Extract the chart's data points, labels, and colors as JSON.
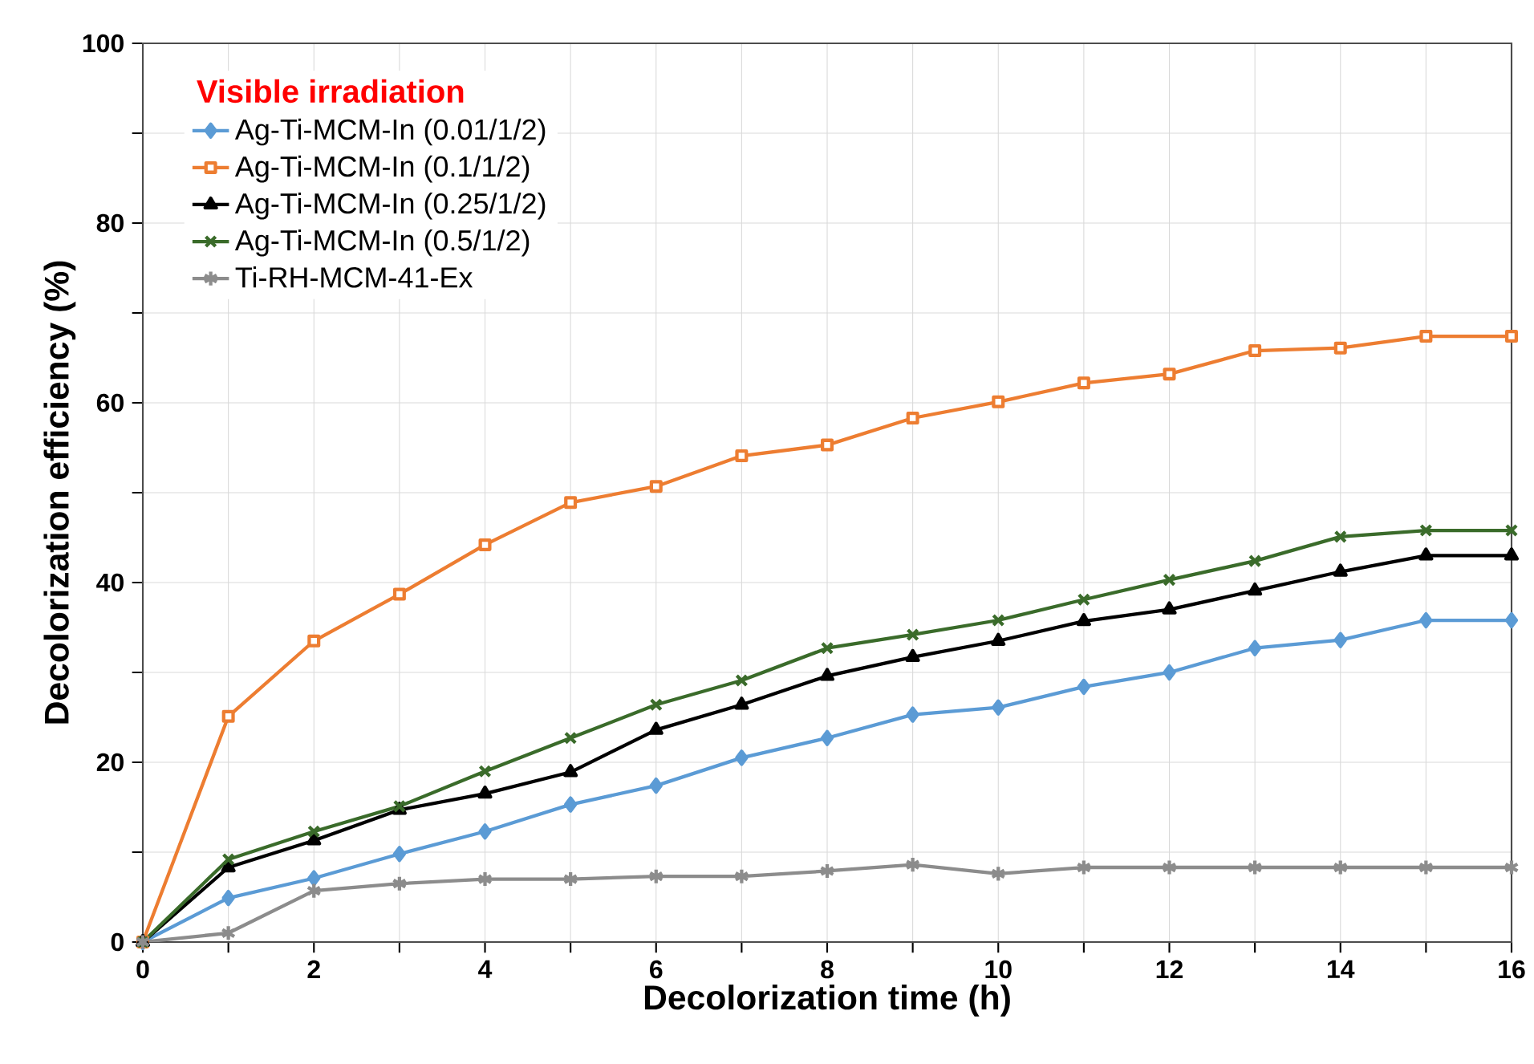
{
  "chart_data": {
    "type": "line",
    "xlabel": "Decolorization time (h)",
    "ylabel": "Decolorization efficiency (%)",
    "legend_title": "Visible irradiation",
    "legend": "top left",
    "grid": true,
    "line_style": "solid",
    "x": [
      0,
      1,
      2,
      3,
      4,
      5,
      6,
      7,
      8,
      9,
      10,
      11,
      12,
      13,
      14,
      15,
      16
    ],
    "xlim": [
      0,
      16
    ],
    "ylim": [
      0,
      100
    ],
    "xticks": [
      0,
      {
        "value": 1,
        "label": null
      },
      2,
      {
        "value": 3,
        "label": null
      },
      4,
      {
        "value": 5,
        "label": null
      },
      6,
      {
        "value": 7,
        "label": null
      },
      8,
      {
        "value": 9,
        "label": null
      },
      10,
      {
        "value": 11,
        "label": null
      },
      12,
      {
        "value": 13,
        "label": null
      },
      14,
      {
        "value": 15,
        "label": null
      },
      16
    ],
    "yticks": [
      0,
      {
        "value": 10,
        "label": null
      },
      20,
      {
        "value": 30,
        "label": null
      },
      40,
      {
        "value": 50,
        "label": null
      },
      60,
      {
        "value": 70,
        "label": null
      },
      80,
      {
        "value": 90,
        "label": null
      },
      100
    ],
    "series": [
      {
        "name": "Ag-Ti-MCM-In (0.01/1/2)",
        "color": "#5b9bd5",
        "marker": "diamond",
        "values": [
          0,
          4.9,
          7.1,
          9.8,
          12.3,
          15.3,
          17.4,
          20.5,
          22.7,
          25.3,
          26.1,
          28.4,
          30.0,
          32.7,
          33.6,
          35.8,
          35.8
        ]
      },
      {
        "name": "Ag-Ti-MCM-In (0.1/1/2)",
        "color": "#ed7d31",
        "marker": "square",
        "values": [
          0,
          25.1,
          33.5,
          38.7,
          44.2,
          48.9,
          50.7,
          54.1,
          55.3,
          58.3,
          60.1,
          62.2,
          63.2,
          65.8,
          66.1,
          67.4,
          67.4
        ]
      },
      {
        "name": "Ag-Ti-MCM-In (0.25/1/2)",
        "color": "#000000",
        "marker": "triangle",
        "values": [
          0,
          8.3,
          11.3,
          14.7,
          16.5,
          18.9,
          23.6,
          26.4,
          29.6,
          31.7,
          33.5,
          35.7,
          37.0,
          39.1,
          41.2,
          43.0,
          43.0
        ]
      },
      {
        "name": "Ag-Ti-MCM-In (0.5/1/2)",
        "color": "#3a6b2a",
        "marker": "cross",
        "values": [
          0,
          9.2,
          12.3,
          15.1,
          19.0,
          22.7,
          26.4,
          29.1,
          32.7,
          34.2,
          35.8,
          38.1,
          40.3,
          42.4,
          45.1,
          45.8,
          45.8
        ]
      },
      {
        "name": "Ti-RH-MCM-41-Ex",
        "color": "#8c8c8c",
        "marker": "cross",
        "values": [
          0,
          1.0,
          5.7,
          6.5,
          7.0,
          7.0,
          7.3,
          7.3,
          7.9,
          8.6,
          7.6,
          8.3,
          8.3,
          8.3,
          8.3,
          8.3,
          8.3
        ]
      }
    ]
  }
}
